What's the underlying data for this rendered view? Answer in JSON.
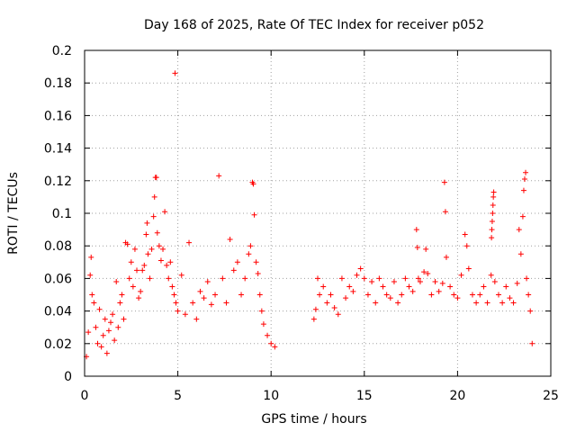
{
  "chart_data": {
    "type": "scatter",
    "title": "Day 168 of 2025, Rate Of TEC Index for receiver p052",
    "xlabel": "GPS time / hours",
    "ylabel": "ROTI / TECUs",
    "xlim": [
      0,
      25
    ],
    "ylim": [
      0,
      0.2
    ],
    "xticks": [
      0,
      5,
      10,
      15,
      20,
      25
    ],
    "xtick_labels": [
      "0",
      "5",
      "10",
      "15",
      "20",
      "25"
    ],
    "yticks": [
      0,
      0.02,
      0.04,
      0.06,
      0.08,
      0.1,
      0.12,
      0.14,
      0.16,
      0.18,
      0.2
    ],
    "ytick_labels": [
      "0",
      "0.02",
      "0.04",
      "0.06",
      "0.08",
      "0.1",
      "0.12",
      "0.14",
      "0.16",
      "0.18",
      "0.2"
    ],
    "grid": true,
    "legend": "none",
    "marker": "plus",
    "color": "#ff0000",
    "series": [
      {
        "points": [
          [
            0.1,
            0.012
          ],
          [
            0.2,
            0.027
          ],
          [
            0.3,
            0.062
          ],
          [
            0.35,
            0.073
          ],
          [
            0.4,
            0.05
          ],
          [
            0.5,
            0.045
          ],
          [
            0.6,
            0.03
          ],
          [
            0.7,
            0.02
          ],
          [
            0.8,
            0.041
          ],
          [
            0.9,
            0.018
          ],
          [
            1.0,
            0.025
          ],
          [
            1.1,
            0.035
          ],
          [
            1.2,
            0.014
          ],
          [
            1.3,
            0.028
          ],
          [
            1.4,
            0.033
          ],
          [
            1.5,
            0.038
          ],
          [
            1.6,
            0.022
          ],
          [
            1.7,
            0.058
          ],
          [
            1.8,
            0.03
          ],
          [
            1.9,
            0.045
          ],
          [
            2.0,
            0.05
          ],
          [
            2.1,
            0.035
          ],
          [
            2.2,
            0.082
          ],
          [
            2.3,
            0.081
          ],
          [
            2.4,
            0.06
          ],
          [
            2.5,
            0.07
          ],
          [
            2.6,
            0.055
          ],
          [
            2.7,
            0.078
          ],
          [
            2.8,
            0.065
          ],
          [
            2.9,
            0.048
          ],
          [
            3.0,
            0.052
          ],
          [
            3.1,
            0.065
          ],
          [
            3.2,
            0.068
          ],
          [
            3.3,
            0.087
          ],
          [
            3.35,
            0.094
          ],
          [
            3.4,
            0.075
          ],
          [
            3.5,
            0.06
          ],
          [
            3.6,
            0.078
          ],
          [
            3.7,
            0.098
          ],
          [
            3.75,
            0.11
          ],
          [
            3.8,
            0.122
          ],
          [
            3.85,
            0.122
          ],
          [
            3.9,
            0.088
          ],
          [
            4.0,
            0.08
          ],
          [
            4.1,
            0.071
          ],
          [
            4.2,
            0.078
          ],
          [
            4.3,
            0.101
          ],
          [
            4.4,
            0.068
          ],
          [
            4.5,
            0.06
          ],
          [
            4.6,
            0.07
          ],
          [
            4.7,
            0.055
          ],
          [
            4.8,
            0.05
          ],
          [
            4.85,
            0.186
          ],
          [
            4.9,
            0.045
          ],
          [
            5.0,
            0.04
          ],
          [
            5.2,
            0.062
          ],
          [
            5.4,
            0.038
          ],
          [
            5.6,
            0.082
          ],
          [
            5.8,
            0.045
          ],
          [
            6.0,
            0.035
          ],
          [
            6.2,
            0.052
          ],
          [
            6.4,
            0.048
          ],
          [
            6.6,
            0.058
          ],
          [
            6.8,
            0.044
          ],
          [
            7.0,
            0.05
          ],
          [
            7.2,
            0.123
          ],
          [
            7.4,
            0.06
          ],
          [
            7.6,
            0.045
          ],
          [
            7.8,
            0.084
          ],
          [
            8.0,
            0.065
          ],
          [
            8.2,
            0.07
          ],
          [
            8.4,
            0.05
          ],
          [
            8.6,
            0.06
          ],
          [
            8.8,
            0.075
          ],
          [
            8.9,
            0.08
          ],
          [
            9.0,
            0.119
          ],
          [
            9.05,
            0.118
          ],
          [
            9.1,
            0.099
          ],
          [
            9.2,
            0.07
          ],
          [
            9.3,
            0.063
          ],
          [
            9.4,
            0.05
          ],
          [
            9.5,
            0.04
          ],
          [
            9.6,
            0.032
          ],
          [
            9.8,
            0.025
          ],
          [
            10.0,
            0.02
          ],
          [
            10.2,
            0.018
          ],
          [
            12.3,
            0.035
          ],
          [
            12.4,
            0.041
          ],
          [
            12.5,
            0.06
          ],
          [
            12.6,
            0.05
          ],
          [
            12.8,
            0.055
          ],
          [
            13.0,
            0.045
          ],
          [
            13.2,
            0.05
          ],
          [
            13.4,
            0.042
          ],
          [
            13.6,
            0.038
          ],
          [
            13.8,
            0.06
          ],
          [
            14.0,
            0.048
          ],
          [
            14.2,
            0.055
          ],
          [
            14.4,
            0.052
          ],
          [
            14.6,
            0.062
          ],
          [
            14.8,
            0.066
          ],
          [
            15.0,
            0.06
          ],
          [
            15.2,
            0.05
          ],
          [
            15.4,
            0.058
          ],
          [
            15.6,
            0.045
          ],
          [
            15.8,
            0.06
          ],
          [
            16.0,
            0.055
          ],
          [
            16.2,
            0.05
          ],
          [
            16.4,
            0.048
          ],
          [
            16.6,
            0.058
          ],
          [
            16.8,
            0.045
          ],
          [
            17.0,
            0.05
          ],
          [
            17.2,
            0.06
          ],
          [
            17.4,
            0.055
          ],
          [
            17.6,
            0.052
          ],
          [
            17.8,
            0.09
          ],
          [
            17.85,
            0.079
          ],
          [
            17.9,
            0.06
          ],
          [
            18.0,
            0.058
          ],
          [
            18.2,
            0.064
          ],
          [
            18.3,
            0.078
          ],
          [
            18.4,
            0.063
          ],
          [
            18.6,
            0.05
          ],
          [
            18.8,
            0.058
          ],
          [
            19.0,
            0.052
          ],
          [
            19.2,
            0.057
          ],
          [
            19.3,
            0.119
          ],
          [
            19.35,
            0.101
          ],
          [
            19.4,
            0.073
          ],
          [
            19.6,
            0.055
          ],
          [
            19.8,
            0.05
          ],
          [
            20.0,
            0.048
          ],
          [
            20.2,
            0.062
          ],
          [
            20.4,
            0.087
          ],
          [
            20.5,
            0.08
          ],
          [
            20.6,
            0.066
          ],
          [
            20.8,
            0.05
          ],
          [
            21.0,
            0.045
          ],
          [
            21.2,
            0.05
          ],
          [
            21.4,
            0.055
          ],
          [
            21.6,
            0.045
          ],
          [
            21.8,
            0.062
          ],
          [
            21.82,
            0.085
          ],
          [
            21.84,
            0.09
          ],
          [
            21.86,
            0.095
          ],
          [
            21.88,
            0.1
          ],
          [
            21.9,
            0.105
          ],
          [
            21.92,
            0.11
          ],
          [
            21.94,
            0.113
          ],
          [
            22.0,
            0.058
          ],
          [
            22.2,
            0.05
          ],
          [
            22.4,
            0.045
          ],
          [
            22.6,
            0.055
          ],
          [
            22.8,
            0.048
          ],
          [
            23.0,
            0.045
          ],
          [
            23.2,
            0.057
          ],
          [
            23.3,
            0.09
          ],
          [
            23.4,
            0.075
          ],
          [
            23.5,
            0.098
          ],
          [
            23.55,
            0.114
          ],
          [
            23.6,
            0.121
          ],
          [
            23.65,
            0.125
          ],
          [
            23.7,
            0.06
          ],
          [
            23.8,
            0.05
          ],
          [
            23.9,
            0.04
          ],
          [
            24.0,
            0.02
          ]
        ]
      }
    ]
  }
}
